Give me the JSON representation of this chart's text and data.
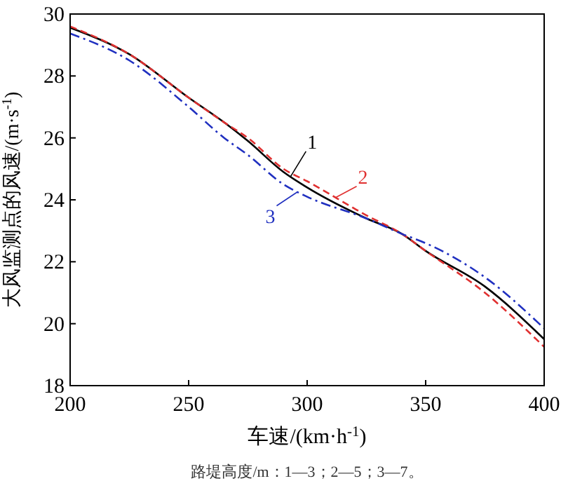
{
  "chart_data": {
    "type": "line",
    "xlabel": "车速/(km·h$^{-1}$)",
    "ylabel": "大风监测点的风速/(m·s$^{-1}$)",
    "x": [
      200,
      225,
      250,
      265,
      275,
      290,
      300,
      325,
      340,
      350,
      375,
      400
    ],
    "xlim": [
      200,
      400
    ],
    "ylim": [
      18,
      30
    ],
    "xticks": [
      200,
      250,
      300,
      350,
      400
    ],
    "yticks": [
      18,
      20,
      22,
      24,
      26,
      28,
      30
    ],
    "grid": false,
    "marker": "none",
    "series": [
      {
        "name": "1",
        "color": "#000000",
        "line_style": "solid",
        "values": [
          29.56,
          28.7,
          27.3,
          26.5,
          25.9,
          24.9,
          24.4,
          23.4,
          22.9,
          22.35,
          21.2,
          19.5
        ]
      },
      {
        "name": "2",
        "color": "#e03030",
        "line_style": "dashed",
        "values": [
          29.6,
          28.7,
          27.3,
          26.5,
          26.0,
          25.0,
          24.6,
          23.5,
          22.9,
          22.35,
          21.0,
          19.25
        ]
      },
      {
        "name": "3",
        "color": "#2030c0",
        "line_style": "dashdot",
        "values": [
          29.37,
          28.5,
          27.0,
          26.0,
          25.45,
          24.5,
          24.1,
          23.4,
          22.9,
          22.6,
          21.5,
          19.85
        ]
      }
    ],
    "annotations": [
      "路堤高度/m：1—3；2—5；3—7。"
    ]
  }
}
